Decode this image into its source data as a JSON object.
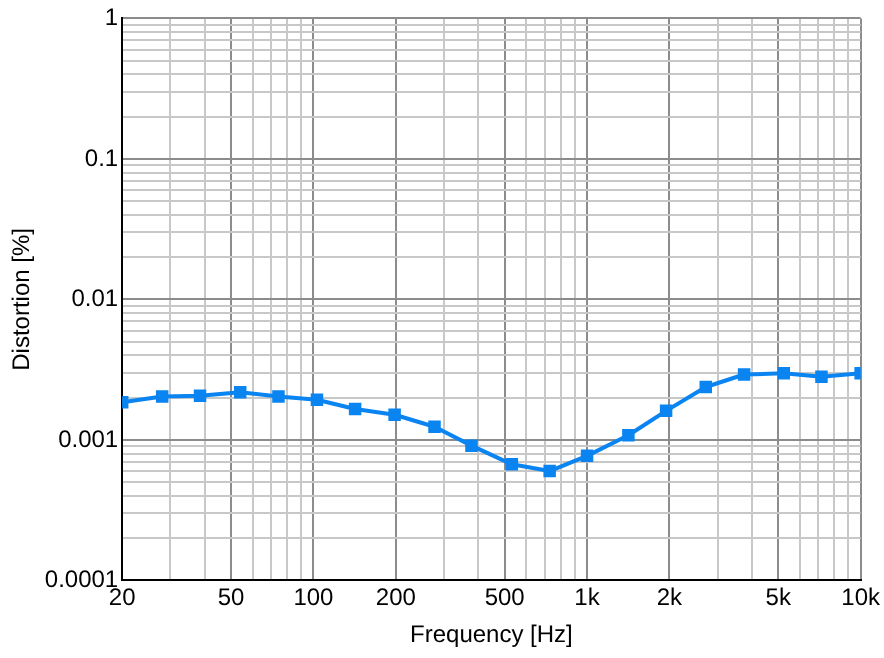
{
  "chart_data": {
    "type": "line",
    "xlabel": "Frequency [Hz]",
    "ylabel": "Distortion [%]",
    "log": "xy",
    "grid": true,
    "marker": "square",
    "line_style": "solid",
    "xlim": [
      20,
      10000
    ],
    "ylim": [
      0.0001,
      1
    ],
    "xticks": [
      20,
      {
        "value": 30,
        "label": null
      },
      {
        "value": 40,
        "label": null
      },
      50,
      {
        "value": 60,
        "label": null
      },
      {
        "value": 70,
        "label": null
      },
      {
        "value": 80,
        "label": null
      },
      {
        "value": 90,
        "label": null
      },
      100,
      200,
      {
        "value": 300,
        "label": null
      },
      {
        "value": 400,
        "label": null
      },
      500,
      {
        "value": 600,
        "label": null
      },
      {
        "value": 700,
        "label": null
      },
      {
        "value": 800,
        "label": null
      },
      {
        "value": 900,
        "label": null
      },
      {
        "value": 1000,
        "label": "1k"
      },
      {
        "value": 2000,
        "label": "2k"
      },
      {
        "value": 3000,
        "label": null
      },
      {
        "value": 4000,
        "label": null
      },
      {
        "value": 5000,
        "label": "5k"
      },
      {
        "value": 6000,
        "label": null
      },
      {
        "value": 7000,
        "label": null
      },
      {
        "value": 8000,
        "label": null
      },
      {
        "value": 9000,
        "label": null
      },
      {
        "value": 10000,
        "label": "10k"
      }
    ],
    "yticks": [
      0.0001,
      {
        "value": 0.0002,
        "label": null
      },
      {
        "value": 0.0003,
        "label": null
      },
      {
        "value": 0.0004,
        "label": null
      },
      {
        "value": 0.0005,
        "label": null
      },
      {
        "value": 0.0006,
        "label": null
      },
      {
        "value": 0.0007,
        "label": null
      },
      {
        "value": 0.0008,
        "label": null
      },
      {
        "value": 0.0009,
        "label": null
      },
      0.001,
      {
        "value": 0.002,
        "label": null
      },
      {
        "value": 0.003,
        "label": null
      },
      {
        "value": 0.004,
        "label": null
      },
      {
        "value": 0.005,
        "label": null
      },
      {
        "value": 0.006,
        "label": null
      },
      {
        "value": 0.007,
        "label": null
      },
      {
        "value": 0.008,
        "label": null
      },
      {
        "value": 0.009,
        "label": null
      },
      0.01,
      {
        "value": 0.02,
        "label": null
      },
      {
        "value": 0.03,
        "label": null
      },
      {
        "value": 0.04,
        "label": null
      },
      {
        "value": 0.05,
        "label": null
      },
      {
        "value": 0.06,
        "label": null
      },
      {
        "value": 0.07,
        "label": null
      },
      {
        "value": 0.08,
        "label": null
      },
      {
        "value": 0.09,
        "label": null
      },
      0.1,
      {
        "value": 0.2,
        "label": null
      },
      {
        "value": 0.3,
        "label": null
      },
      {
        "value": 0.4,
        "label": null
      },
      {
        "value": 0.5,
        "label": null
      },
      {
        "value": 0.6,
        "label": null
      },
      {
        "value": 0.7,
        "label": null
      },
      {
        "value": 0.8,
        "label": null
      },
      {
        "value": 0.9,
        "label": null
      },
      1
    ],
    "series": [
      {
        "color": "#0a84f0",
        "x": [
          20,
          28,
          38.5,
          54,
          74.5,
          103,
          142,
          198,
          277,
          378,
          531,
          730,
          1000,
          1416,
          1945,
          2716,
          3750,
          5235,
          7190,
          10000
        ],
        "values": [
          0.00185,
          0.00204,
          0.00206,
          0.00218,
          0.00204,
          0.00193,
          0.00166,
          0.00151,
          0.00124,
          0.00091,
          0.00067,
          0.0006,
          0.00077,
          0.00108,
          0.00161,
          0.00238,
          0.00292,
          0.00298,
          0.00282,
          0.00298
        ]
      }
    ]
  }
}
